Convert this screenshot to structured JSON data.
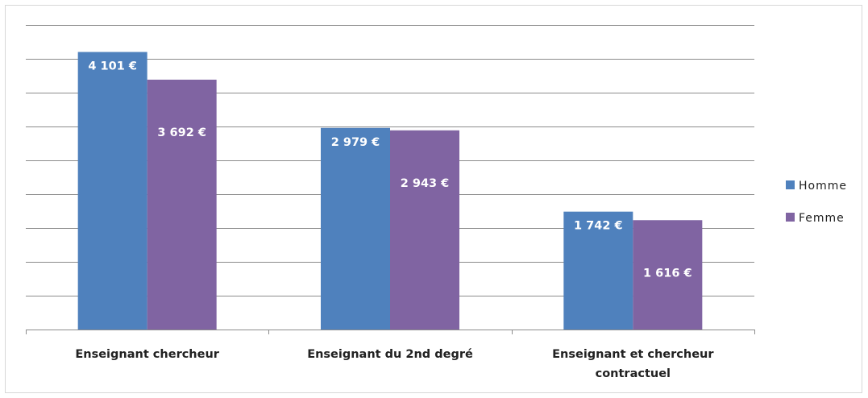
{
  "chart_data": {
    "type": "bar",
    "categories": [
      [
        "Enseignant chercheur"
      ],
      [
        "Enseignant du 2nd degré"
      ],
      [
        "Enseignant et chercheur",
        "contractuel"
      ]
    ],
    "series": [
      {
        "name": "Homme",
        "color": "#4f81bd",
        "values": [
          4101,
          2979,
          1742
        ],
        "labels": [
          "4 101 €",
          "2 979 €",
          "1 742 €"
        ]
      },
      {
        "name": "Femme",
        "color": "#8064a2",
        "values": [
          3692,
          2943,
          1616
        ],
        "labels": [
          "3 692 €",
          "2 943 €",
          "1 616 €"
        ]
      }
    ],
    "ylim": [
      0,
      4500
    ],
    "grid": true,
    "legend_position": "right"
  }
}
